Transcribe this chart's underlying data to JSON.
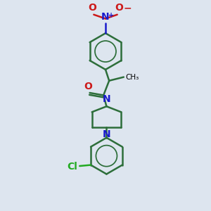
{
  "bg_color": "#dde5ef",
  "bond_color": "#2d6e3a",
  "bond_width": 1.8,
  "N_color": "#1a1acc",
  "O_color": "#cc1a1a",
  "Cl_color": "#22aa22",
  "text_color": "#000000",
  "fig_size": [
    3.0,
    3.0
  ],
  "dpi": 100,
  "xlim": [
    0,
    10
  ],
  "ylim": [
    0,
    10
  ]
}
